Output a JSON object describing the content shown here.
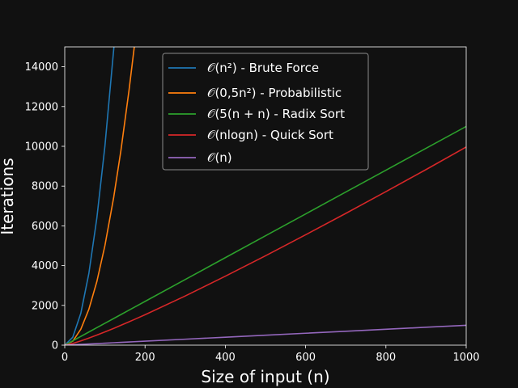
{
  "chart_data": {
    "type": "line",
    "title": "",
    "xlabel": "Size of input (n)",
    "ylabel": "Iterations",
    "xlim": [
      0,
      1000
    ],
    "ylim": [
      0,
      15000
    ],
    "xticks": [
      0,
      200,
      400,
      600,
      800,
      1000
    ],
    "yticks": [
      0,
      2000,
      4000,
      6000,
      8000,
      10000,
      12000,
      14000
    ],
    "xtick_labels": [
      "0",
      "200",
      "400",
      "600",
      "800",
      "1000"
    ],
    "ytick_labels": [
      "0",
      "2000",
      "4000",
      "6000",
      "8000",
      "10000",
      "12000",
      "14000"
    ],
    "grid": false,
    "legend_position": "top-center",
    "background": "#111111",
    "x": [
      0,
      20,
      40,
      60,
      80,
      100,
      122,
      140,
      160,
      173,
      200,
      300,
      400,
      500,
      600,
      700,
      800,
      900,
      1000
    ],
    "series": [
      {
        "name": "𝒪(n²) - Brute Force",
        "color": "#1f77b4",
        "values": [
          0,
          400,
          1600,
          3600,
          6400,
          10000,
          14884,
          null,
          null,
          null,
          null,
          null,
          null,
          null,
          null,
          null,
          null,
          null,
          null
        ]
      },
      {
        "name": "𝒪(0,5n²) - Probabilistic",
        "color": "#ff7f0e",
        "values": [
          0,
          200,
          800,
          1800,
          3200,
          5000,
          7442,
          9800,
          12800,
          14965,
          null,
          null,
          null,
          null,
          null,
          null,
          null,
          null,
          null
        ]
      },
      {
        "name": "𝒪(5(n + n) - Radix Sort",
        "color": "#2ca02c",
        "values": [
          0,
          220,
          440,
          660,
          880,
          1100,
          1342,
          1540,
          1760,
          1903,
          2200,
          3300,
          4400,
          5500,
          6600,
          7700,
          8800,
          9900,
          11000
        ]
      },
      {
        "name": "𝒪(nlogn) - Quick Sort",
        "color": "#d62728",
        "values": [
          0,
          86,
          213,
          356,
          508,
          664,
          845,
          1000,
          1174,
          1288,
          1530,
          2472,
          3467,
          4495,
          5550,
          6626,
          7722,
          8831,
          9966
        ]
      },
      {
        "name": "𝒪(n)",
        "color": "#9467bd",
        "values": [
          0,
          20,
          40,
          60,
          80,
          100,
          122,
          140,
          160,
          173,
          200,
          300,
          400,
          500,
          600,
          700,
          800,
          900,
          1000
        ]
      }
    ]
  }
}
